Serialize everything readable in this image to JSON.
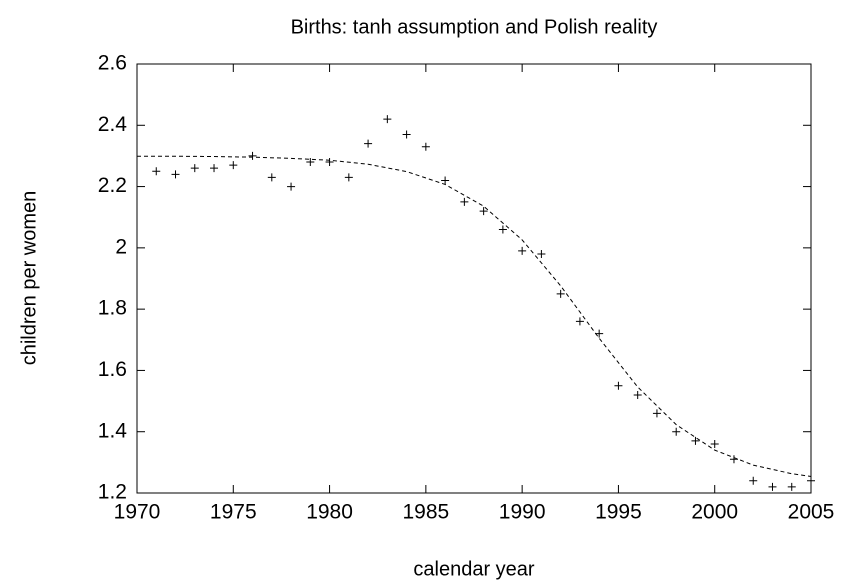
{
  "chart_data": {
    "type": "scatter",
    "title": "Births: tanh assumption and Polish reality",
    "xlabel": "calendar year",
    "ylabel": "children per women",
    "xlim": [
      1970,
      2005
    ],
    "ylim": [
      1.2,
      2.6
    ],
    "xticks": [
      1970,
      1975,
      1980,
      1985,
      1990,
      1995,
      2000,
      2005
    ],
    "yticks": [
      1.2,
      1.4,
      1.6,
      1.8,
      2,
      2.2,
      2.4,
      2.6
    ],
    "series": [
      {
        "type": "scatter",
        "color": "#000000",
        "x": [
          1971,
          1972,
          1973,
          1974,
          1975,
          1976,
          1977,
          1978,
          1979,
          1980,
          1981,
          1982,
          1983,
          1984,
          1985,
          1986,
          1987,
          1988,
          1989,
          1990,
          1991,
          1992,
          1993,
          1994,
          1995,
          1996,
          1997,
          1998,
          1999,
          2000,
          2001,
          2002,
          2003,
          2004,
          2005
        ],
        "values": [
          2.25,
          2.24,
          2.26,
          2.26,
          2.27,
          2.3,
          2.23,
          2.2,
          2.28,
          2.28,
          2.23,
          2.34,
          2.42,
          2.37,
          2.33,
          2.22,
          2.15,
          2.12,
          2.06,
          1.99,
          1.98,
          1.85,
          1.76,
          1.72,
          1.55,
          1.52,
          1.46,
          1.4,
          1.37,
          1.36,
          1.31,
          1.24,
          1.22,
          1.22,
          1.24
        ]
      },
      {
        "type": "line",
        "color": "#000000",
        "x": [
          1970,
          1972,
          1974,
          1976,
          1978,
          1980,
          1982,
          1984,
          1986,
          1988,
          1990,
          1992,
          1994,
          1996,
          1998,
          2000,
          2002,
          2004,
          2005
        ],
        "values": [
          2.299,
          2.299,
          2.298,
          2.296,
          2.292,
          2.286,
          2.273,
          2.249,
          2.207,
          2.136,
          2.026,
          1.876,
          1.705,
          1.546,
          1.423,
          1.34,
          1.291,
          1.263,
          1.254
        ]
      }
    ]
  }
}
